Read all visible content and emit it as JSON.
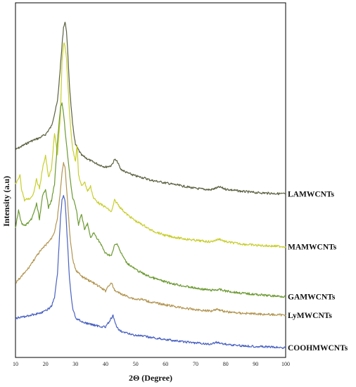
{
  "chart_data": {
    "type": "line",
    "title": "",
    "xlabel": "2Θ (Degree)",
    "ylabel": "Intensity (a.u)",
    "xlim": [
      10,
      100
    ],
    "x_ticks": [
      10,
      20,
      30,
      40,
      50,
      60,
      70,
      80,
      90,
      100
    ],
    "y_ticks_shown": false,
    "grid": false,
    "legend": "labels at right end of each curve",
    "series": [
      {
        "name": "LAMWCNTs",
        "color": "#5b6140",
        "points": [
          [
            10,
            212
          ],
          [
            15,
            200
          ],
          [
            18,
            195
          ],
          [
            20,
            190
          ],
          [
            22,
            178
          ],
          [
            24,
            142
          ],
          [
            25,
            90
          ],
          [
            26,
            35
          ],
          [
            26.5,
            28
          ],
          [
            27,
            40
          ],
          [
            28,
            120
          ],
          [
            29,
            175
          ],
          [
            30,
            205
          ],
          [
            32,
            220
          ],
          [
            35,
            228
          ],
          [
            38,
            234
          ],
          [
            40,
            237
          ],
          [
            42,
            235
          ],
          [
            43,
            226
          ],
          [
            44,
            230
          ],
          [
            45,
            240
          ],
          [
            47,
            245
          ],
          [
            50,
            250
          ],
          [
            53,
            253
          ],
          [
            55,
            256
          ],
          [
            60,
            260
          ],
          [
            65,
            264
          ],
          [
            70,
            268
          ],
          [
            75,
            270
          ],
          [
            78,
            266
          ],
          [
            80,
            269
          ],
          [
            85,
            272
          ],
          [
            90,
            274
          ],
          [
            95,
            275
          ],
          [
            100,
            276
          ]
        ]
      },
      {
        "name": "MAMWCNTs",
        "color": "#c8cf2e",
        "points": [
          [
            10,
            262
          ],
          [
            11,
            255
          ],
          [
            11.5,
            248
          ],
          [
            12,
            268
          ],
          [
            13,
            285
          ],
          [
            15,
            282
          ],
          [
            16,
            275
          ],
          [
            17,
            255
          ],
          [
            18,
            268
          ],
          [
            19,
            240
          ],
          [
            20,
            220
          ],
          [
            21,
            252
          ],
          [
            22,
            240
          ],
          [
            23,
            188
          ],
          [
            24,
            220
          ],
          [
            25,
            160
          ],
          [
            25.5,
            85
          ],
          [
            26,
            60
          ],
          [
            26.3,
            58
          ],
          [
            27,
            80
          ],
          [
            28,
            160
          ],
          [
            29,
            210
          ],
          [
            30,
            228
          ],
          [
            30.5,
            205
          ],
          [
            31,
            248
          ],
          [
            32,
            265
          ],
          [
            33,
            258
          ],
          [
            34,
            272
          ],
          [
            35,
            265
          ],
          [
            36,
            282
          ],
          [
            38,
            290
          ],
          [
            40,
            295
          ],
          [
            42,
            302
          ],
          [
            43,
            285
          ],
          [
            44,
            290
          ],
          [
            45,
            296
          ],
          [
            47,
            305
          ],
          [
            50,
            315
          ],
          [
            53,
            322
          ],
          [
            55,
            328
          ],
          [
            60,
            336
          ],
          [
            65,
            340
          ],
          [
            70,
            343
          ],
          [
            75,
            345
          ],
          [
            78,
            341
          ],
          [
            80,
            345
          ],
          [
            85,
            348
          ],
          [
            90,
            350
          ],
          [
            95,
            351
          ],
          [
            100,
            352
          ]
        ]
      },
      {
        "name": "GAMWCNTs",
        "color": "#6c9a32",
        "points": [
          [
            10,
            326
          ],
          [
            11,
            300
          ],
          [
            12,
            318
          ],
          [
            13,
            322
          ],
          [
            15,
            315
          ],
          [
            16,
            305
          ],
          [
            17,
            290
          ],
          [
            18,
            312
          ],
          [
            19,
            280
          ],
          [
            20,
            268
          ],
          [
            21,
            296
          ],
          [
            22,
            285
          ],
          [
            23,
            262
          ],
          [
            24,
            200
          ],
          [
            25,
            150
          ],
          [
            25.5,
            145
          ],
          [
            26,
            160
          ],
          [
            27,
            205
          ],
          [
            28,
            245
          ],
          [
            29,
            282
          ],
          [
            30,
            292
          ],
          [
            31,
            320
          ],
          [
            32,
            305
          ],
          [
            33,
            328
          ],
          [
            34,
            318
          ],
          [
            35,
            340
          ],
          [
            36,
            332
          ],
          [
            38,
            345
          ],
          [
            40,
            362
          ],
          [
            42,
            365
          ],
          [
            43,
            350
          ],
          [
            44,
            348
          ],
          [
            45,
            360
          ],
          [
            47,
            375
          ],
          [
            50,
            385
          ],
          [
            53,
            392
          ],
          [
            55,
            396
          ],
          [
            60,
            403
          ],
          [
            65,
            408
          ],
          [
            70,
            412
          ],
          [
            75,
            415
          ],
          [
            78,
            414
          ],
          [
            80,
            416
          ],
          [
            85,
            419
          ],
          [
            90,
            421
          ],
          [
            95,
            423
          ],
          [
            100,
            424
          ]
        ]
      },
      {
        "name": "LyMWCNTs",
        "color": "#b29550",
        "points": [
          [
            10,
            405
          ],
          [
            12,
            395
          ],
          [
            14,
            385
          ],
          [
            16,
            372
          ],
          [
            18,
            360
          ],
          [
            20,
            350
          ],
          [
            22,
            340
          ],
          [
            23,
            330
          ],
          [
            24,
            310
          ],
          [
            25,
            270
          ],
          [
            25.5,
            245
          ],
          [
            26,
            232
          ],
          [
            26.5,
            238
          ],
          [
            27,
            265
          ],
          [
            28,
            330
          ],
          [
            29,
            370
          ],
          [
            30,
            385
          ],
          [
            32,
            395
          ],
          [
            35,
            402
          ],
          [
            38,
            410
          ],
          [
            40,
            416
          ],
          [
            41,
            408
          ],
          [
            42,
            405
          ],
          [
            43,
            415
          ],
          [
            45,
            420
          ],
          [
            48,
            425
          ],
          [
            50,
            428
          ],
          [
            52,
            428
          ],
          [
            55,
            432
          ],
          [
            60,
            436
          ],
          [
            65,
            440
          ],
          [
            70,
            443
          ],
          [
            75,
            445
          ],
          [
            77,
            442
          ],
          [
            80,
            446
          ],
          [
            85,
            448
          ],
          [
            90,
            449
          ],
          [
            95,
            450
          ],
          [
            100,
            451
          ]
        ]
      },
      {
        "name": "COOHMWCNTs",
        "color": "#4a62c2",
        "points": [
          [
            10,
            455
          ],
          [
            12,
            454
          ],
          [
            14,
            452
          ],
          [
            16,
            450
          ],
          [
            18,
            448
          ],
          [
            20,
            445
          ],
          [
            22,
            438
          ],
          [
            23,
            425
          ],
          [
            24,
            390
          ],
          [
            25,
            310
          ],
          [
            25.5,
            285
          ],
          [
            26,
            278
          ],
          [
            26.5,
            285
          ],
          [
            27,
            320
          ],
          [
            28,
            400
          ],
          [
            29,
            440
          ],
          [
            30,
            455
          ],
          [
            33,
            462
          ],
          [
            36,
            465
          ],
          [
            38,
            467
          ],
          [
            40,
            468
          ],
          [
            41,
            462
          ],
          [
            42,
            455
          ],
          [
            42.5,
            452
          ],
          [
            43,
            460
          ],
          [
            44,
            470
          ],
          [
            46,
            476
          ],
          [
            48,
            478
          ],
          [
            50,
            480
          ],
          [
            52,
            481
          ],
          [
            55,
            483
          ],
          [
            60,
            486
          ],
          [
            65,
            489
          ],
          [
            70,
            491
          ],
          [
            75,
            493
          ],
          [
            77,
            490
          ],
          [
            80,
            493
          ],
          [
            85,
            495
          ],
          [
            90,
            496
          ],
          [
            95,
            497
          ],
          [
            100,
            498
          ]
        ]
      }
    ]
  }
}
